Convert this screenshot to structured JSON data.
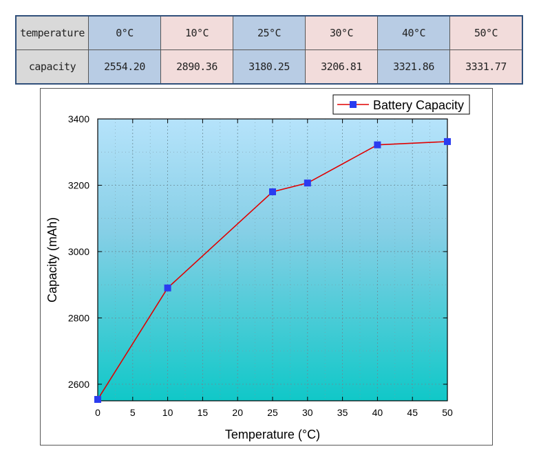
{
  "table": {
    "row1": [
      "temperature",
      "0°C",
      "10°C",
      "25°C",
      "30°C",
      "40°C",
      "50°C"
    ],
    "row2": [
      "capacity",
      "2554.20",
      "2890.36",
      "3180.25",
      "3206.81",
      "3321.86",
      "3331.77"
    ]
  },
  "chart_data": {
    "type": "line",
    "title": "",
    "xlabel": "Temperature (°C)",
    "ylabel": "Capacity (mAh)",
    "xlim": [
      0,
      50
    ],
    "ylim": [
      2550,
      3400
    ],
    "xticks": [
      0,
      5,
      10,
      15,
      20,
      25,
      30,
      35,
      40,
      45,
      50
    ],
    "yticks": [
      2600,
      2800,
      3000,
      3200,
      3400
    ],
    "grid": true,
    "legend_position": "top-right",
    "series": [
      {
        "name": "Battery Capacity",
        "x": [
          0,
          10,
          25,
          30,
          40,
          50
        ],
        "y": [
          2554.2,
          2890.36,
          3180.25,
          3206.81,
          3321.86,
          3331.77
        ],
        "line_color": "#e00000",
        "marker_color": "#2a3cf0"
      }
    ]
  }
}
